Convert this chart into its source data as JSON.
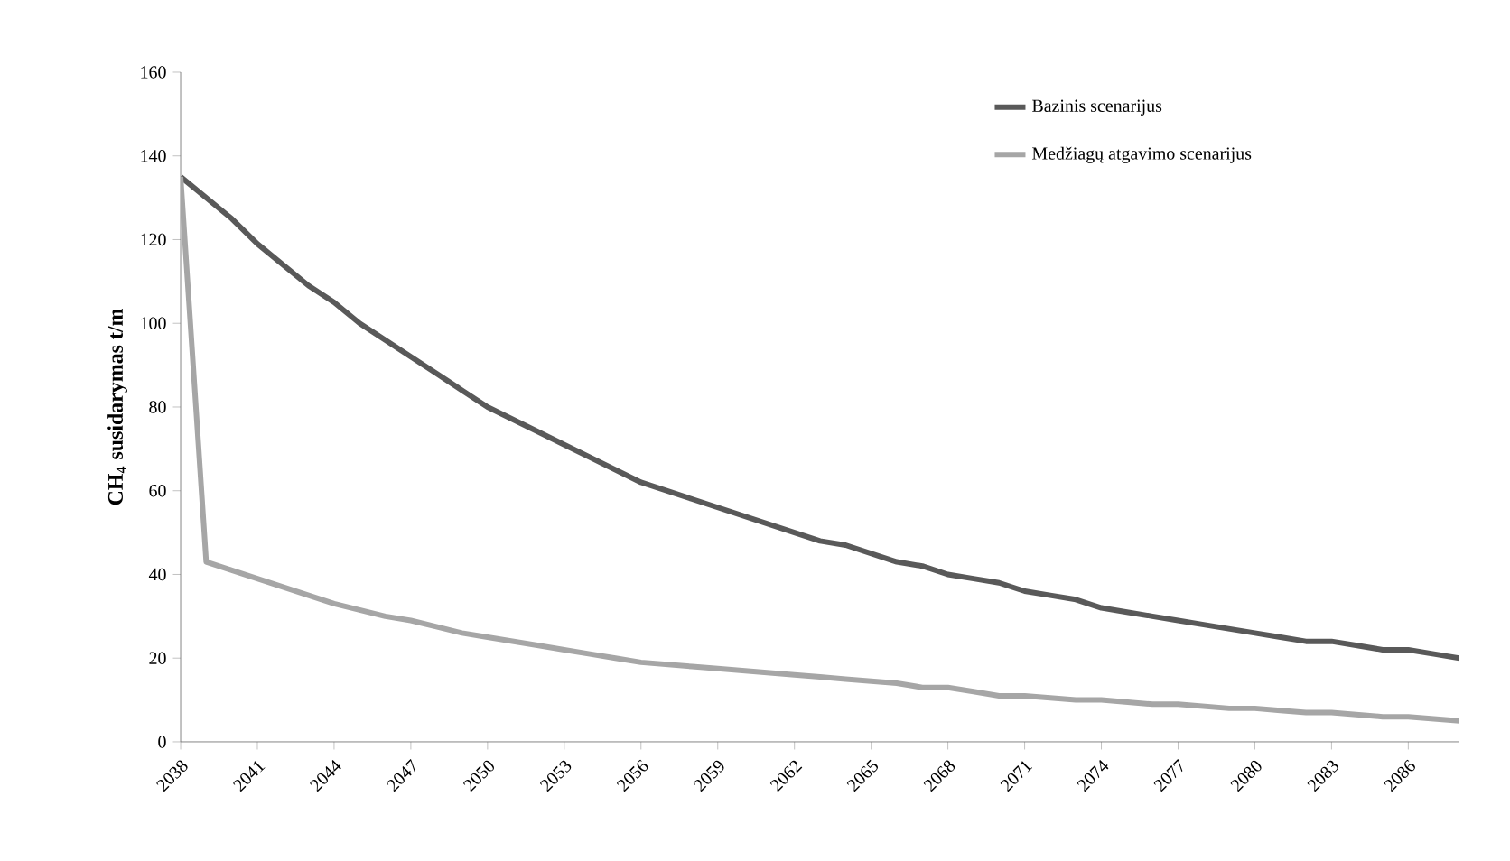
{
  "chart_data": {
    "type": "line",
    "ylabel": "**CH$_{4}$ susidarymas t/m**",
    "categories": [
      "2038",
      null,
      null,
      "2041",
      null,
      null,
      "2044",
      null,
      null,
      "2047",
      null,
      null,
      "2050",
      null,
      null,
      "2053",
      null,
      null,
      "2056",
      null,
      null,
      "2059",
      null,
      null,
      "2062",
      null,
      null,
      "2065",
      null,
      null,
      "2068",
      null,
      null,
      "2071",
      null,
      null,
      "2074",
      null,
      null,
      "2077",
      null,
      null,
      "2080",
      null,
      null,
      "2083",
      null,
      null,
      "2086",
      null,
      null
    ],
    "series": [
      {
        "name": "Bazinis scenarijus",
        "color": "#595959",
        "values": [
          135,
          130,
          125,
          119,
          114,
          109,
          105,
          100,
          96,
          92,
          88,
          84,
          80,
          77,
          74,
          71,
          68,
          65,
          62,
          60,
          58,
          56,
          54,
          52,
          50,
          48,
          47,
          45,
          43,
          42,
          40,
          39,
          38,
          36,
          35,
          34,
          32,
          31,
          30,
          29,
          28,
          27,
          26,
          25,
          24,
          24,
          23,
          22,
          22,
          21,
          20
        ]
      },
      {
        "name": "Medžiagų atgavimo  scenarijus",
        "color": "#a6a6a6",
        "values": [
          135,
          43,
          41,
          39,
          37,
          35,
          33,
          31.5,
          30,
          29,
          27.5,
          26,
          25,
          24,
          23,
          22,
          21,
          20,
          19,
          18.5,
          18,
          17.5,
          17,
          16.5,
          16,
          15.5,
          15,
          14.5,
          14,
          13,
          13,
          12,
          11,
          11,
          10.5,
          10,
          10,
          9.5,
          9,
          9,
          8.5,
          8,
          8,
          7.5,
          7,
          7,
          6.5,
          6,
          6,
          5.5,
          5
        ]
      }
    ],
    "ylim": [
      0,
      160
    ],
    "yticks": [
      0,
      20,
      40,
      60,
      80,
      100,
      120,
      140,
      160
    ],
    "legend": "top right",
    "line_style": "solid",
    "marker": "none",
    "grid": false
  }
}
